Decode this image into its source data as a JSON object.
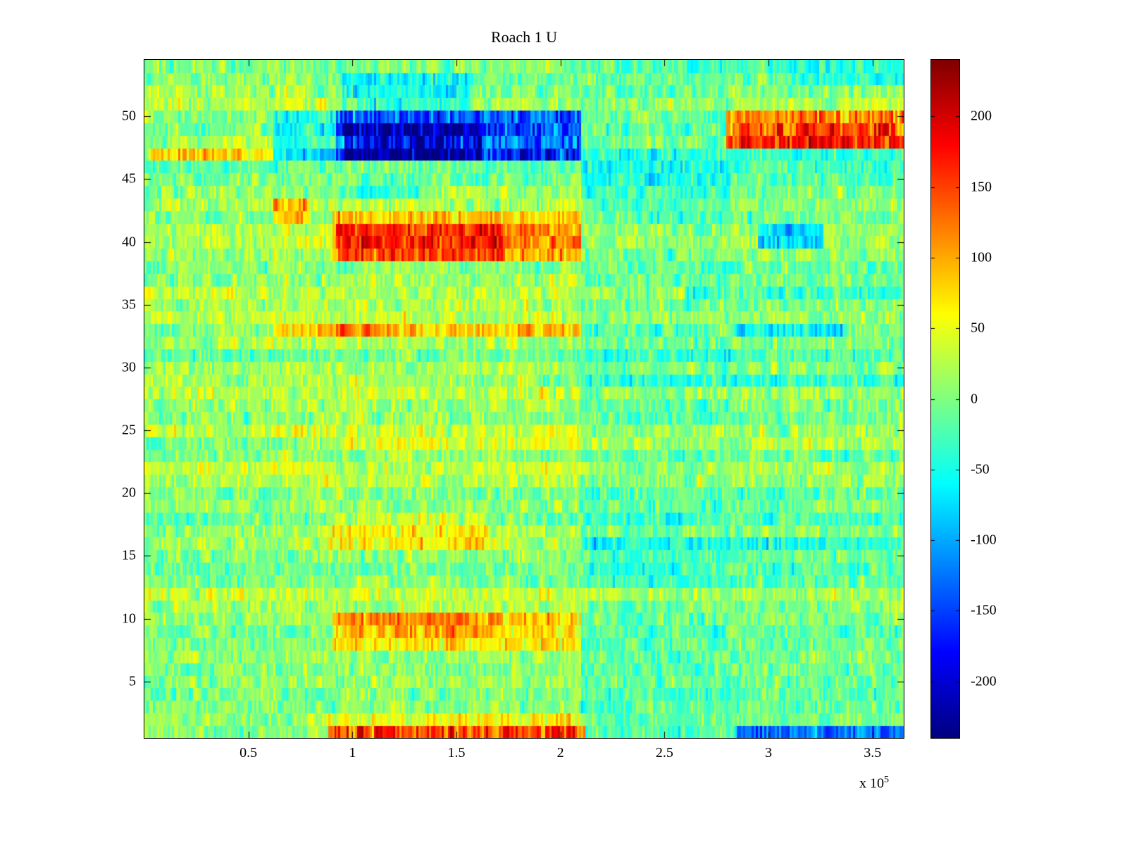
{
  "chart_data": {
    "type": "heatmap",
    "title": "Roach 1 U",
    "colormap": "jet",
    "clim": [
      -240,
      240
    ],
    "x_range": [
      0,
      365000
    ],
    "y_range": [
      0.5,
      54.5
    ],
    "x_axis_exponent": {
      "base": "x 10",
      "power": "5"
    },
    "x_ticks": [
      {
        "value": 50000,
        "label": "0.5"
      },
      {
        "value": 100000,
        "label": "1"
      },
      {
        "value": 150000,
        "label": "1.5"
      },
      {
        "value": 200000,
        "label": "2"
      },
      {
        "value": 250000,
        "label": "2.5"
      },
      {
        "value": 300000,
        "label": "3"
      },
      {
        "value": 350000,
        "label": "3.5"
      }
    ],
    "y_ticks": [
      {
        "value": 5,
        "label": "5"
      },
      {
        "value": 10,
        "label": "10"
      },
      {
        "value": 15,
        "label": "15"
      },
      {
        "value": 20,
        "label": "20"
      },
      {
        "value": 25,
        "label": "25"
      },
      {
        "value": 30,
        "label": "30"
      },
      {
        "value": 35,
        "label": "35"
      },
      {
        "value": 40,
        "label": "40"
      },
      {
        "value": 45,
        "label": "45"
      },
      {
        "value": 50,
        "label": "50"
      }
    ],
    "colorbar_ticks": [
      {
        "value": 200,
        "label": "200"
      },
      {
        "value": 150,
        "label": "150"
      },
      {
        "value": 100,
        "label": "100"
      },
      {
        "value": 50,
        "label": "50"
      },
      {
        "value": 0,
        "label": "0"
      },
      {
        "value": -50,
        "label": "-50"
      },
      {
        "value": -100,
        "label": "-100"
      },
      {
        "value": -150,
        "label": "-150"
      },
      {
        "value": -200,
        "label": "-200"
      }
    ],
    "grid": {
      "nx": 360,
      "ny": 54
    },
    "noise": {
      "seed": 7,
      "sd": 30,
      "row_offset_sd": 12
    },
    "column_bands": [
      {
        "x0": 0,
        "x1": 62000,
        "offset": 6
      },
      {
        "x0": 62000,
        "x1": 210000,
        "offset": 12
      },
      {
        "x0": 210000,
        "x1": 282000,
        "offset": -14
      },
      {
        "x0": 282000,
        "x1": 365000,
        "offset": -4
      }
    ],
    "features": [
      {
        "x0": 2000,
        "x1": 62000,
        "y0": 46.4,
        "y1": 47.4,
        "value": 95,
        "label": "left-orange-streak"
      },
      {
        "x0": 62000,
        "x1": 92000,
        "y0": 46.6,
        "y1": 50.0,
        "value": -55,
        "label": "blue-band-left-fade"
      },
      {
        "x0": 92000,
        "x1": 210000,
        "y0": 46.6,
        "y1": 50.2,
        "value": -150,
        "label": "main-blue-band"
      },
      {
        "x0": 96000,
        "x1": 162000,
        "y0": 47.0,
        "y1": 49.6,
        "value": -60,
        "label": "blue-band-core"
      },
      {
        "x0": 95000,
        "x1": 156000,
        "y0": 50.2,
        "y1": 53.0,
        "value": -50,
        "label": "blue-scatter-above"
      },
      {
        "x0": 92000,
        "x1": 210000,
        "y0": 50.2,
        "y1": 53.5,
        "value": -20,
        "label": "cool-upper-mid"
      },
      {
        "x0": 280000,
        "x1": 365000,
        "y0": 47.5,
        "y1": 50.1,
        "value": 125,
        "label": "right-red-band"
      },
      {
        "x0": 286000,
        "x1": 362000,
        "y0": 48.0,
        "y1": 49.6,
        "value": 45,
        "label": "right-red-core"
      },
      {
        "x0": 90000,
        "x1": 210000,
        "y0": 38.6,
        "y1": 42.6,
        "value": 80,
        "label": "warm-band-40"
      },
      {
        "x0": 92000,
        "x1": 172000,
        "y0": 38.9,
        "y1": 41.4,
        "value": 55,
        "label": "warm-band-40-core"
      },
      {
        "x0": 62000,
        "x1": 79000,
        "y0": 41.8,
        "y1": 43.1,
        "value": 75,
        "label": "orange-spot-42"
      },
      {
        "x0": 62000,
        "x1": 210000,
        "y0": 32.5,
        "y1": 33.6,
        "value": 75,
        "label": "orange-streak-33"
      },
      {
        "x0": 88000,
        "x1": 116000,
        "y0": 32.5,
        "y1": 33.6,
        "value": 45,
        "label": "orange-streak-33-core"
      },
      {
        "x0": 90000,
        "x1": 210000,
        "y0": 7.6,
        "y1": 10.7,
        "value": 65,
        "label": "warm-band-9"
      },
      {
        "x0": 96000,
        "x1": 172000,
        "y0": 8.4,
        "y1": 10.3,
        "value": 35,
        "label": "warm-band-9-core"
      },
      {
        "x0": 88000,
        "x1": 166000,
        "y0": 15.9,
        "y1": 18.1,
        "value": 45,
        "label": "warm-patch-17"
      },
      {
        "x0": 88000,
        "x1": 212000,
        "y0": 0.5,
        "y1": 1.7,
        "value": 145,
        "label": "bottom-red-streak"
      },
      {
        "x0": 88000,
        "x1": 212000,
        "y0": 1.7,
        "y1": 2.5,
        "value": 40,
        "label": "bottom-warm-row2"
      },
      {
        "x0": 285000,
        "x1": 365000,
        "y0": 0.5,
        "y1": 1.8,
        "value": -105,
        "label": "bottom-blue-right"
      },
      {
        "x0": 295000,
        "x1": 326000,
        "y0": 39.4,
        "y1": 41.3,
        "value": -90,
        "label": "blue-patch-right-40"
      },
      {
        "x0": 210000,
        "x1": 365000,
        "y0": 15.6,
        "y1": 16.5,
        "value": -45,
        "label": "cyan-streak-16-right"
      },
      {
        "x0": 0,
        "x1": 90000,
        "y0": 23.1,
        "y1": 24.0,
        "value": -40,
        "label": "cyan-streak-23-left"
      },
      {
        "x0": 190000,
        "x1": 365000,
        "y0": 28.6,
        "y1": 29.5,
        "value": -35,
        "label": "cyan-streak-29-right"
      },
      {
        "x0": 260000,
        "x1": 365000,
        "y0": 35.6,
        "y1": 36.5,
        "value": -40,
        "label": "cyan-streak-36-right"
      },
      {
        "x0": 285000,
        "x1": 336000,
        "y0": 32.5,
        "y1": 33.5,
        "value": -50,
        "label": "cyan-streak-33-right"
      },
      {
        "x0": 210000,
        "x1": 282000,
        "y0": 43.0,
        "y1": 46.2,
        "value": -18,
        "label": "teal-region-mid-right"
      },
      {
        "x0": 92000,
        "x1": 132000,
        "y0": 43.4,
        "y1": 44.7,
        "value": -50,
        "label": "cyan-under-blue-band"
      },
      {
        "x0": 300000,
        "x1": 365000,
        "y0": 52.6,
        "y1": 54.5,
        "value": -30,
        "label": "cyan-top-right"
      }
    ]
  }
}
